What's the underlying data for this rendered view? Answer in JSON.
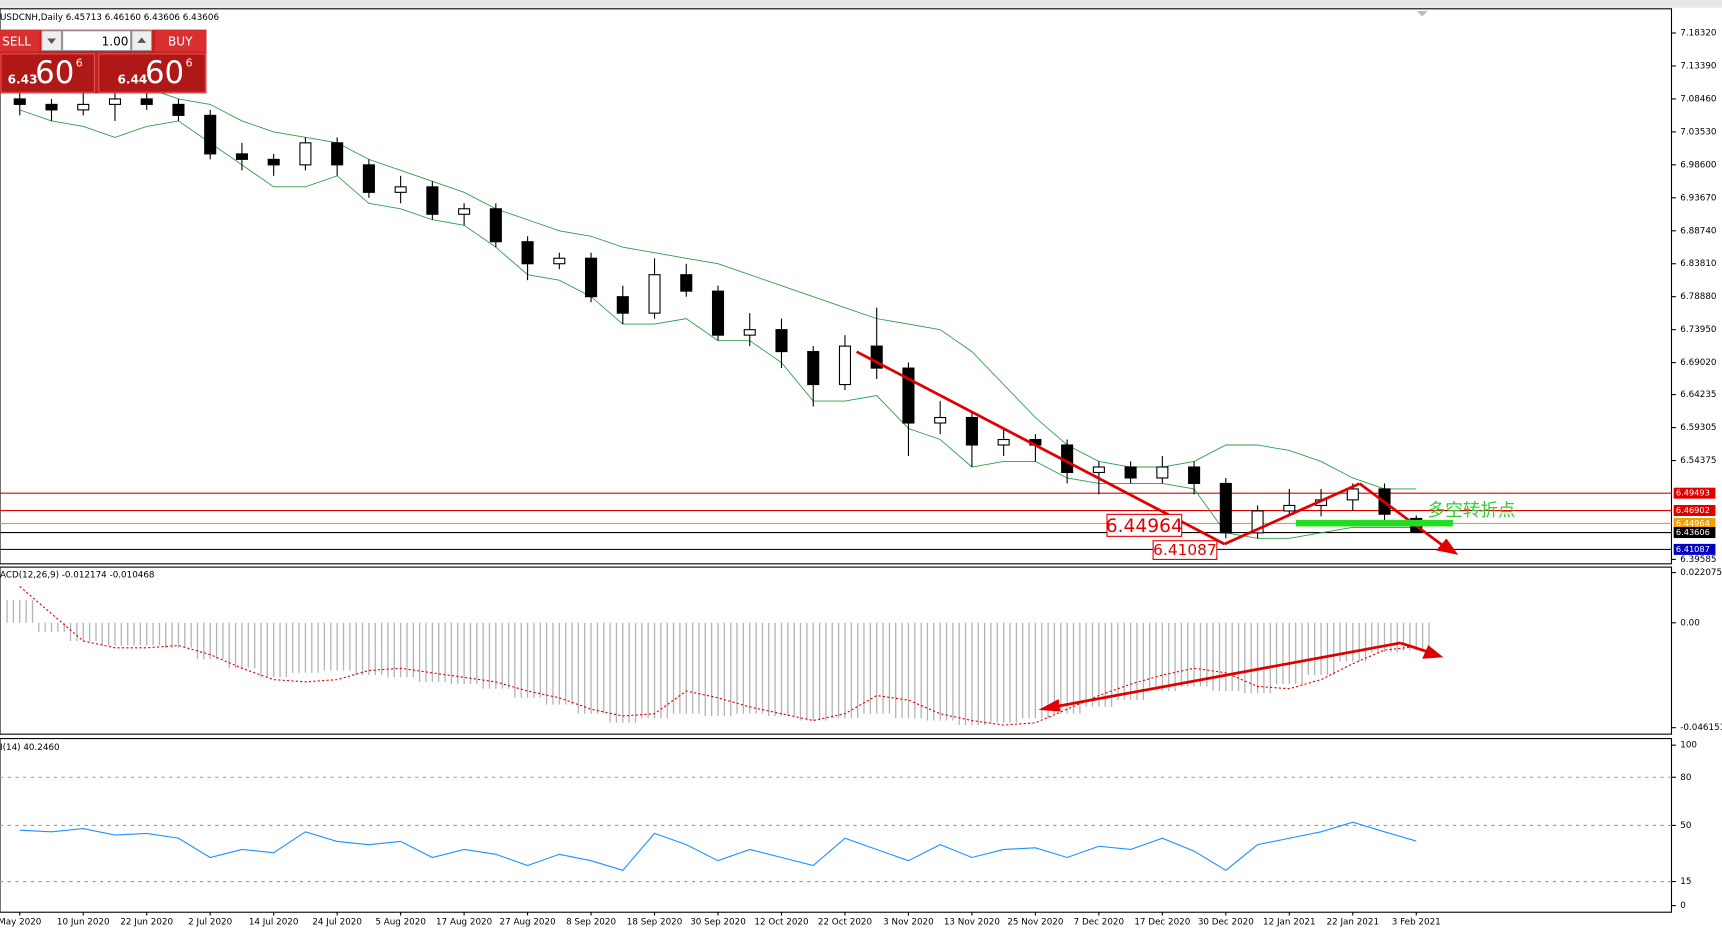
{
  "chart_data": [
    {
      "type": "candlestick",
      "title": "USDCNH,Daily 6.45713 6.46160 6.43606 6.43606",
      "categories": [
        "May 2020",
        null,
        "10 Jun 2020",
        null,
        "22 Jun 2020",
        null,
        "2 Jul 2020",
        null,
        "14 Jul 2020",
        null,
        "24 Jul 2020",
        null,
        "5 Aug 2020",
        null,
        "17 Aug 2020",
        null,
        "27 Aug 2020",
        null,
        "8 Sep 2020",
        null,
        "18 Sep 2020",
        null,
        "30 Sep 2020",
        null,
        "12 Oct 2020",
        null,
        "22 Oct 2020",
        null,
        "3 Nov 2020",
        null,
        "13 Nov 2020",
        null,
        "25 Nov 2020",
        null,
        "7 Dec 2020",
        null,
        "17 Dec 2020",
        null,
        "30 Dec 2020",
        null,
        "12 Jan 2021",
        null,
        "22 Jan 2021",
        null,
        "3 Feb 2021"
      ],
      "open": [
        7.0846,
        7.0764,
        7.0682,
        7.0764,
        7.0846,
        7.0764,
        7.06,
        7.0024,
        6.9942,
        6.986,
        7.0189,
        6.986,
        6.9449,
        6.9531,
        6.9121,
        6.9203,
        6.871,
        6.8381,
        6.8463,
        6.7888,
        6.7642,
        6.8217,
        6.7971,
        6.7313,
        6.7395,
        6.7067,
        6.6574,
        6.7149,
        6.682,
        6.5999,
        6.6081,
        6.567,
        6.5752,
        6.567,
        6.5259,
        6.5341,
        6.5177,
        6.5341,
        6.5095,
        6.4356,
        6.4684,
        6.4766,
        6.4849,
        6.5013,
        6.45713
      ],
      "high": [
        7.0928,
        7.0846,
        7.0928,
        7.0928,
        7.0928,
        7.0846,
        7.0682,
        7.0189,
        7.0024,
        7.0271,
        7.0271,
        6.9942,
        6.9696,
        6.9614,
        6.9285,
        6.9285,
        6.8792,
        6.8546,
        6.8546,
        6.8053,
        6.8463,
        6.8381,
        6.8053,
        6.7642,
        6.756,
        6.7149,
        6.7313,
        6.7724,
        6.6902,
        6.6327,
        6.6163,
        6.5917,
        6.5834,
        6.5752,
        6.5424,
        6.5424,
        6.5506,
        6.5424,
        6.5177,
        6.4766,
        6.5013,
        6.5013,
        6.5095,
        6.5095,
        6.4616
      ],
      "low": [
        7.06,
        7.0517,
        7.06,
        7.0517,
        7.0682,
        7.0517,
        6.9942,
        6.9778,
        6.9696,
        6.9778,
        6.9696,
        6.9367,
        6.9285,
        6.9039,
        6.8956,
        6.8628,
        6.8135,
        6.8299,
        6.7806,
        6.7478,
        6.756,
        6.7888,
        6.7231,
        6.7149,
        6.682,
        6.6245,
        6.6492,
        6.6656,
        6.5506,
        6.5834,
        6.5341,
        6.5506,
        6.5424,
        6.5095,
        6.4931,
        6.5095,
        6.5095,
        6.4931,
        6.4274,
        6.4274,
        6.4602,
        6.4602,
        6.4684,
        6.452,
        6.43606
      ],
      "close": [
        7.0764,
        7.0682,
        7.0764,
        7.0846,
        7.0764,
        7.06,
        7.0024,
        6.9942,
        6.986,
        7.0189,
        6.986,
        6.9449,
        6.9531,
        6.9121,
        6.9203,
        6.871,
        6.8381,
        6.8463,
        6.7888,
        6.7642,
        6.8217,
        6.7971,
        6.7313,
        6.7395,
        6.7067,
        6.6574,
        6.7149,
        6.682,
        6.5999,
        6.6081,
        6.567,
        6.5752,
        6.567,
        6.5259,
        6.5341,
        6.5177,
        6.5341,
        6.5095,
        6.4356,
        6.4684,
        6.4766,
        6.4849,
        6.5013,
        6.4635,
        6.43606
      ],
      "bands": [
        {
          "color": "#2e9e4a",
          "values": [
            7.1093,
            7.1175,
            7.1093,
            7.1093,
            7.101,
            7.0846,
            7.0764,
            7.0517,
            7.0353,
            7.0271,
            7.0189,
            6.9942,
            6.9778,
            6.9614,
            6.9449,
            6.9203,
            6.9039,
            6.8874,
            6.8792,
            6.8628,
            6.8546,
            6.8463,
            6.8381,
            6.8217,
            6.8053,
            6.7888,
            6.7724,
            6.756,
            6.7478,
            6.7395,
            6.7067,
            6.6574,
            6.6081,
            6.567,
            6.5424,
            6.5341,
            6.5341,
            6.5424,
            6.567,
            6.567,
            6.5588,
            6.5424,
            6.5177,
            6.5013,
            6.5013
          ]
        },
        {
          "color": "#2e9e4a",
          "values": [
            7.0682,
            7.0517,
            7.0435,
            7.0271,
            7.0435,
            7.0517,
            7.0189,
            6.986,
            6.9531,
            6.9531,
            6.9696,
            6.9285,
            6.9203,
            6.9039,
            6.8956,
            6.8628,
            6.8217,
            6.8135,
            6.7888,
            6.7478,
            6.7478,
            6.756,
            6.7231,
            6.7231,
            6.6902,
            6.6327,
            6.6327,
            6.641,
            6.5917,
            6.5752,
            6.5341,
            6.5424,
            6.5424,
            6.5177,
            6.5095,
            6.5095,
            6.5095,
            6.5013,
            6.4356,
            6.4274,
            6.4274,
            6.4356,
            6.4438,
            6.4438,
            6.4438
          ]
        }
      ],
      "levels": [
        {
          "value": 6.49493,
          "color": "#e00000",
          "text_color": "#ffffff"
        },
        {
          "value": 6.46902,
          "color": "#e00000",
          "text_color": "#ffffff"
        },
        {
          "value": 6.44964,
          "color": "#f0a000",
          "text_color": "#ffffff"
        },
        {
          "value": 6.43606,
          "color": "#000000",
          "text_color": "#ffffff"
        },
        {
          "value": 6.41087,
          "color": "#0000c0",
          "text_color": "#ffffff"
        }
      ],
      "annotations": [
        "6.44964",
        "6.41087",
        "多空转折点"
      ],
      "ylim": [
        6.3893,
        7.2194
      ],
      "yticks": [
        {
          "value": 7.1832,
          "label": "7.18320"
        },
        {
          "value": 7.1339,
          "label": "7.13390"
        },
        {
          "value": 7.0846,
          "label": "7.08460"
        },
        {
          "value": 7.0353,
          "label": "7.03530"
        },
        {
          "value": 6.986,
          "label": "6.98600"
        },
        {
          "value": 6.9367,
          "label": "6.93670"
        },
        {
          "value": 6.8874,
          "label": "6.88740"
        },
        {
          "value": 6.8381,
          "label": "6.83810"
        },
        {
          "value": 6.7888,
          "label": "6.78880"
        },
        {
          "value": 6.7395,
          "label": "6.73950"
        },
        {
          "value": 6.6902,
          "label": "6.69020"
        },
        6.64235,
        6.59305,
        6.54375,
        6.39585
      ]
    },
    {
      "type": "macd",
      "title": "ACD(12,26,9) -0.012174 -0.010468",
      "series": [
        {
          "style": "histogram",
          "color": "#b4b4b4",
          "values": [
            0.01,
            -0.004,
            -0.008,
            -0.01,
            -0.01,
            -0.011,
            -0.016,
            -0.02,
            -0.024,
            -0.022,
            -0.021,
            -0.023,
            -0.024,
            -0.026,
            -0.027,
            -0.029,
            -0.033,
            -0.036,
            -0.04,
            -0.044,
            -0.042,
            -0.04,
            -0.041,
            -0.04,
            -0.041,
            -0.043,
            -0.042,
            -0.04,
            -0.042,
            -0.043,
            -0.045,
            -0.044,
            -0.042,
            -0.04,
            -0.037,
            -0.034,
            -0.03,
            -0.028,
            -0.03,
            -0.031,
            -0.027,
            -0.023,
            -0.017,
            -0.013,
            -0.012174
          ]
        },
        {
          "style": "dotted",
          "color": "#e00000",
          "values": [
            0.016,
            0.004,
            -0.008,
            -0.011,
            -0.011,
            -0.01,
            -0.014,
            -0.02,
            -0.025,
            -0.026,
            -0.025,
            -0.021,
            -0.02,
            -0.022,
            -0.024,
            -0.026,
            -0.03,
            -0.033,
            -0.038,
            -0.041,
            -0.04,
            -0.03,
            -0.033,
            -0.037,
            -0.04,
            -0.043,
            -0.04,
            -0.032,
            -0.034,
            -0.04,
            -0.043,
            -0.045,
            -0.044,
            -0.038,
            -0.032,
            -0.027,
            -0.023,
            -0.02,
            -0.022,
            -0.028,
            -0.029,
            -0.025,
            -0.018,
            -0.012,
            -0.010468
          ]
        }
      ],
      "ylim": [
        -0.049,
        0.0245
      ],
      "yticks": [
        0.022075,
        {
          "value": 0,
          "label": "0.00"
        },
        -0.046151
      ]
    },
    {
      "type": "line",
      "title": "I(14) 40.2460",
      "series": [
        {
          "color": "#1e90ff",
          "values": [
            47,
            46,
            48,
            44,
            45,
            42,
            30,
            35,
            33,
            46,
            40,
            38,
            40,
            30,
            35,
            32,
            25,
            32,
            28,
            22,
            45,
            38,
            28,
            35,
            30,
            25,
            42,
            35,
            28,
            38,
            30,
            35,
            36,
            30,
            37,
            35,
            42,
            34,
            22,
            38,
            42,
            46,
            52,
            46,
            40.246
          ]
        }
      ],
      "ylim": [
        0,
        100
      ],
      "yticks": [
        100,
        80,
        50,
        15,
        0
      ],
      "grid": true
    }
  ],
  "trade_panel": {
    "sell": "SELL",
    "lot": "1.00",
    "buy": "BUY",
    "sell_price": {
      "big": "6.43",
      "pips": "60",
      "fraction": "6"
    },
    "buy_price": {
      "big": "6.44",
      "pips": "60",
      "fraction": "6"
    }
  }
}
